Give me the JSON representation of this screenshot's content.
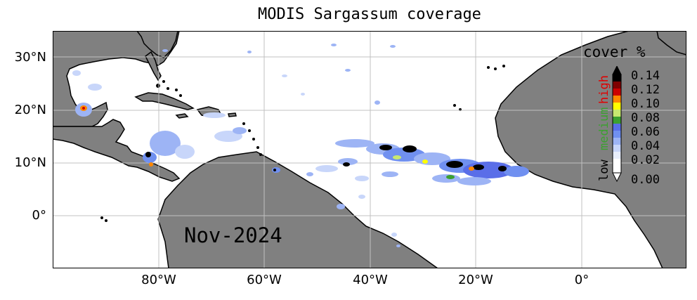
{
  "title": "MODIS Sargassum coverage",
  "month_label": "Nov-2024",
  "axes": {
    "y_ticks": [
      "30°N",
      "20°N",
      "10°N",
      "0°"
    ],
    "x_ticks": [
      "80°W",
      "60°W",
      "40°W",
      "20°W",
      "0°"
    ]
  },
  "colorbar": {
    "title": "cover %",
    "ticks": [
      "0.14",
      "0.12",
      "0.10",
      "0.08",
      "0.06",
      "0.04",
      "0.02",
      "0.00"
    ],
    "words": {
      "low": "low",
      "medium": "medium",
      "high": "high"
    },
    "colors": [
      "#000000",
      "#7f0000",
      "#cc0000",
      "#ff8800",
      "#ffff00",
      "#c8e870",
      "#3ca030",
      "#5a6ee8",
      "#7090f0",
      "#9db4f5",
      "#c8d6fa",
      "#e8eefc",
      "#ffffff"
    ]
  },
  "colors": {
    "land": "#808080",
    "ocean": "#ffffff",
    "grid": "#c0c0c0"
  }
}
